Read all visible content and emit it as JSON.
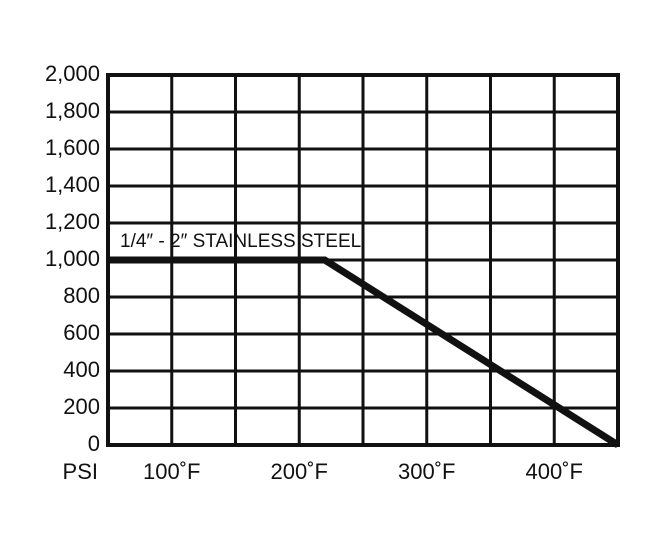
{
  "chart_data": {
    "type": "line",
    "y_label": "PSI",
    "x": [
      50,
      220,
      450
    ],
    "series": [
      {
        "name": "1/4″ - 2″ STAINLESS STEEL",
        "color": "#111111",
        "values": [
          1000,
          1000,
          0
        ]
      }
    ],
    "xlim": [
      50,
      450
    ],
    "xticks": [
      {
        "value": 100,
        "label": "100˚F"
      },
      {
        "value": 200,
        "label": "200˚F"
      },
      {
        "value": 300,
        "label": "300˚F"
      },
      {
        "value": 400,
        "label": "400˚F"
      }
    ],
    "x_gridlines": [
      50,
      100,
      150,
      200,
      250,
      300,
      350,
      400,
      450
    ],
    "ylim": [
      0,
      2000
    ],
    "yticks": [
      0,
      200,
      400,
      600,
      800,
      {
        "value": 1000,
        "label": "1,000"
      },
      {
        "value": 1200,
        "label": "1,200"
      },
      {
        "value": 1400,
        "label": "1,400"
      },
      {
        "value": 1600,
        "label": "1,600"
      },
      {
        "value": 1800,
        "label": "1,800"
      },
      {
        "value": 2000,
        "label": "2,000"
      }
    ],
    "grid": true
  }
}
